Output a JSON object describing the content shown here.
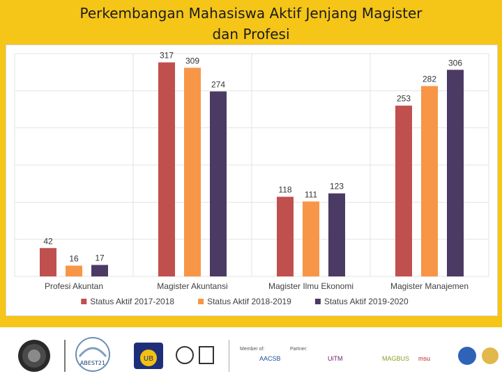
{
  "title_line1": "Perkembangan Mahasiswa Aktif Jenjang Magister",
  "title_line2": "dan Profesi",
  "footer": {
    "logo_text_abest": "ABEST21",
    "logo_text_ub": "UB",
    "membership_label": "Member of:",
    "partner_label": "Partner:",
    "partner_logos": [
      "AACSB",
      "UiTM",
      "MAGBUS",
      "msu"
    ]
  },
  "chart_data": {
    "type": "bar",
    "categories": [
      "Profesi Akuntan",
      "Magister Akuntansi",
      "Magister Ilmu Ekonomi",
      "Magister Manajemen"
    ],
    "series": [
      {
        "name": "Status Aktif 2017-2018",
        "color": "#c0504d",
        "values": [
          42,
          317,
          118,
          253
        ]
      },
      {
        "name": "Status Aktif 2018-2019",
        "color": "#f79646",
        "values": [
          16,
          309,
          111,
          282
        ]
      },
      {
        "name": "Status Aktif 2019-2020",
        "color": "#4b3a63",
        "values": [
          17,
          274,
          123,
          306
        ]
      }
    ],
    "ylim": [
      0,
      330
    ],
    "grid": true,
    "legend": "bottom"
  }
}
